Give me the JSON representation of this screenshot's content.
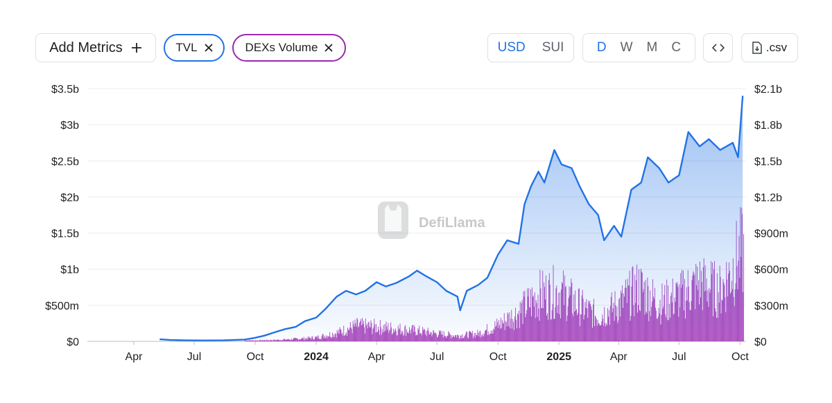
{
  "toolbar": {
    "add_metrics_label": "Add Metrics",
    "add_metrics_icon": "plus-icon",
    "chips": [
      {
        "label": "TVL",
        "color": "#2172e5"
      },
      {
        "label": "DEXs Volume",
        "color": "#9c27b0"
      }
    ],
    "currency": {
      "options": [
        "USD",
        "SUI"
      ],
      "selected": "USD"
    },
    "interval": {
      "options": [
        "D",
        "W",
        "M",
        "C"
      ],
      "selected": "D"
    },
    "embed_icon": "code-icon",
    "csv_label": ".csv",
    "csv_icon": "file-download-icon"
  },
  "watermark": {
    "text": "DefiLlama",
    "icon": "llama-logo-icon"
  },
  "chart_data": {
    "type": "line",
    "grid": true,
    "x_ticks": [
      "Apr",
      "Jul",
      "Oct",
      "2024",
      "Apr",
      "Jul",
      "Oct",
      "2025",
      "Apr",
      "Jul",
      "Oct"
    ],
    "x_ticks_bold": [
      "2024",
      "2025"
    ],
    "y_left": {
      "ticks": [
        "$0",
        "$500m",
        "$1b",
        "$1.5b",
        "$2b",
        "$2.5b",
        "$3b",
        "$3.5b"
      ],
      "ylim": [
        0,
        3500000000
      ]
    },
    "y_right": {
      "ticks": [
        "$0",
        "$300m",
        "$600m",
        "$900m",
        "$1.2b",
        "$1.5b",
        "$1.8b",
        "$2.1b"
      ],
      "ylim": [
        0,
        2100000000
      ]
    },
    "series": [
      {
        "name": "TVL",
        "axis": "left",
        "render": "area-line",
        "color": "#2172e5",
        "points": [
          [
            "2023-05-10",
            30000000
          ],
          [
            "2023-05-25",
            20000000
          ],
          [
            "2023-06-15",
            15000000
          ],
          [
            "2023-07-15",
            12000000
          ],
          [
            "2023-08-15",
            15000000
          ],
          [
            "2023-09-15",
            25000000
          ],
          [
            "2023-10-01",
            50000000
          ],
          [
            "2023-10-15",
            80000000
          ],
          [
            "2023-11-01",
            130000000
          ],
          [
            "2023-11-15",
            170000000
          ],
          [
            "2023-12-01",
            200000000
          ],
          [
            "2023-12-15",
            280000000
          ],
          [
            "2024-01-01",
            330000000
          ],
          [
            "2024-01-15",
            450000000
          ],
          [
            "2024-02-01",
            620000000
          ],
          [
            "2024-02-15",
            700000000
          ],
          [
            "2024-03-01",
            650000000
          ],
          [
            "2024-03-15",
            700000000
          ],
          [
            "2024-04-01",
            820000000
          ],
          [
            "2024-04-15",
            760000000
          ],
          [
            "2024-05-01",
            810000000
          ],
          [
            "2024-05-20",
            900000000
          ],
          [
            "2024-06-01",
            980000000
          ],
          [
            "2024-06-15",
            900000000
          ],
          [
            "2024-07-01",
            820000000
          ],
          [
            "2024-07-15",
            700000000
          ],
          [
            "2024-08-01",
            620000000
          ],
          [
            "2024-08-05",
            430000000
          ],
          [
            "2024-08-15",
            700000000
          ],
          [
            "2024-09-01",
            780000000
          ],
          [
            "2024-09-15",
            880000000
          ],
          [
            "2024-10-01",
            1200000000
          ],
          [
            "2024-10-15",
            1400000000
          ],
          [
            "2024-11-01",
            1350000000
          ],
          [
            "2024-11-10",
            1900000000
          ],
          [
            "2024-11-20",
            2150000000
          ],
          [
            "2024-12-01",
            2350000000
          ],
          [
            "2024-12-10",
            2200000000
          ],
          [
            "2024-12-25",
            2650000000
          ],
          [
            "2025-01-05",
            2450000000
          ],
          [
            "2025-01-20",
            2400000000
          ],
          [
            "2025-02-01",
            2150000000
          ],
          [
            "2025-02-15",
            1900000000
          ],
          [
            "2025-03-01",
            1750000000
          ],
          [
            "2025-03-10",
            1400000000
          ],
          [
            "2025-03-25",
            1600000000
          ],
          [
            "2025-04-05",
            1450000000
          ],
          [
            "2025-04-20",
            2100000000
          ],
          [
            "2025-05-05",
            2200000000
          ],
          [
            "2025-05-15",
            2550000000
          ],
          [
            "2025-06-01",
            2400000000
          ],
          [
            "2025-06-15",
            2200000000
          ],
          [
            "2025-07-01",
            2300000000
          ],
          [
            "2025-07-15",
            2900000000
          ],
          [
            "2025-08-01",
            2700000000
          ],
          [
            "2025-08-15",
            2800000000
          ],
          [
            "2025-09-01",
            2650000000
          ],
          [
            "2025-09-20",
            2750000000
          ],
          [
            "2025-09-28",
            2550000000
          ],
          [
            "2025-10-05",
            3400000000
          ]
        ]
      },
      {
        "name": "DEXs Volume",
        "axis": "right",
        "render": "bars",
        "color": "#9c27b0",
        "points": [
          [
            "2023-10-01",
            10000000
          ],
          [
            "2023-11-01",
            15000000
          ],
          [
            "2023-12-01",
            25000000
          ],
          [
            "2024-01-01",
            40000000
          ],
          [
            "2024-02-01",
            90000000
          ],
          [
            "2024-03-01",
            160000000
          ],
          [
            "2024-04-01",
            150000000
          ],
          [
            "2024-05-01",
            130000000
          ],
          [
            "2024-06-01",
            110000000
          ],
          [
            "2024-07-01",
            80000000
          ],
          [
            "2024-08-01",
            60000000
          ],
          [
            "2024-09-01",
            80000000
          ],
          [
            "2024-10-01",
            170000000
          ],
          [
            "2024-11-01",
            300000000
          ],
          [
            "2024-12-01",
            480000000
          ],
          [
            "2025-01-01",
            520000000
          ],
          [
            "2025-02-01",
            360000000
          ],
          [
            "2025-03-01",
            260000000
          ],
          [
            "2025-04-01",
            380000000
          ],
          [
            "2025-05-01",
            560000000
          ],
          [
            "2025-06-01",
            390000000
          ],
          [
            "2025-07-01",
            470000000
          ],
          [
            "2025-08-01",
            600000000
          ],
          [
            "2025-09-01",
            520000000
          ],
          [
            "2025-10-01",
            900000000
          ]
        ]
      }
    ]
  }
}
